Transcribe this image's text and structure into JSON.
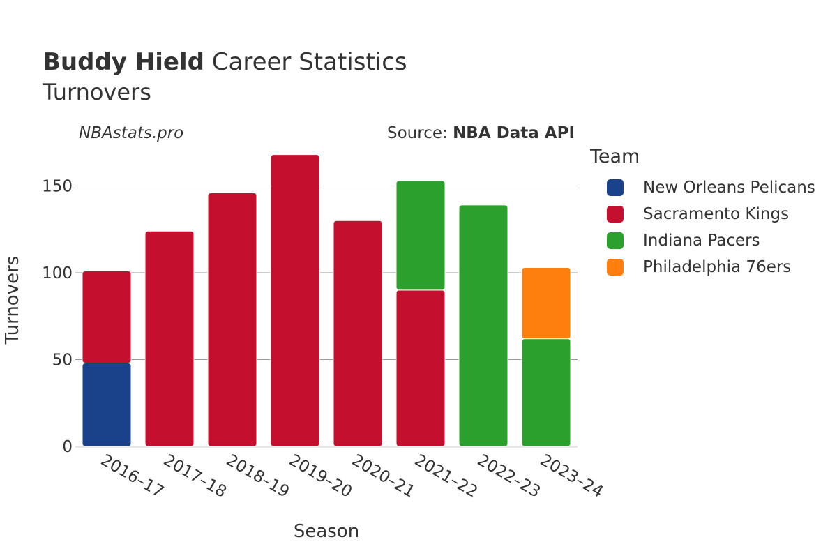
{
  "header": {
    "title_bold": "Buddy Hield",
    "title_rest": " Career Statistics",
    "subtitle": "Turnovers",
    "watermark": "NBAstats.pro",
    "source_prefix": "Source: ",
    "source_bold": "NBA Data API"
  },
  "legend": {
    "title": "Team",
    "items": [
      {
        "label": "New Orleans Pelicans",
        "color": "#1a428a"
      },
      {
        "label": "Sacramento Kings",
        "color": "#c4102e"
      },
      {
        "label": "Indiana Pacers",
        "color": "#2ca02c"
      },
      {
        "label": "Philadelphia 76ers",
        "color": "#ff7f0e"
      }
    ]
  },
  "chart_data": {
    "type": "bar",
    "stacked": true,
    "xlabel": "Season",
    "ylabel": "Turnovers",
    "ylim": [
      0,
      170
    ],
    "yticks": [
      0,
      50,
      100,
      150
    ],
    "grid": true,
    "legend_position": "right",
    "categories": [
      "2016–17",
      "2017–18",
      "2018–19",
      "2019–20",
      "2020–21",
      "2021–22",
      "2022–23",
      "2023–24"
    ],
    "series": [
      {
        "name": "New Orleans Pelicans",
        "color": "#1a428a",
        "values": [
          48,
          0,
          0,
          0,
          0,
          0,
          0,
          0
        ]
      },
      {
        "name": "Sacramento Kings",
        "color": "#c4102e",
        "values": [
          53,
          124,
          146,
          168,
          130,
          90,
          0,
          0
        ]
      },
      {
        "name": "Indiana Pacers",
        "color": "#2ca02c",
        "values": [
          0,
          0,
          0,
          0,
          0,
          63,
          139,
          62
        ]
      },
      {
        "name": "Philadelphia 76ers",
        "color": "#ff7f0e",
        "values": [
          0,
          0,
          0,
          0,
          0,
          0,
          0,
          41
        ]
      }
    ]
  }
}
